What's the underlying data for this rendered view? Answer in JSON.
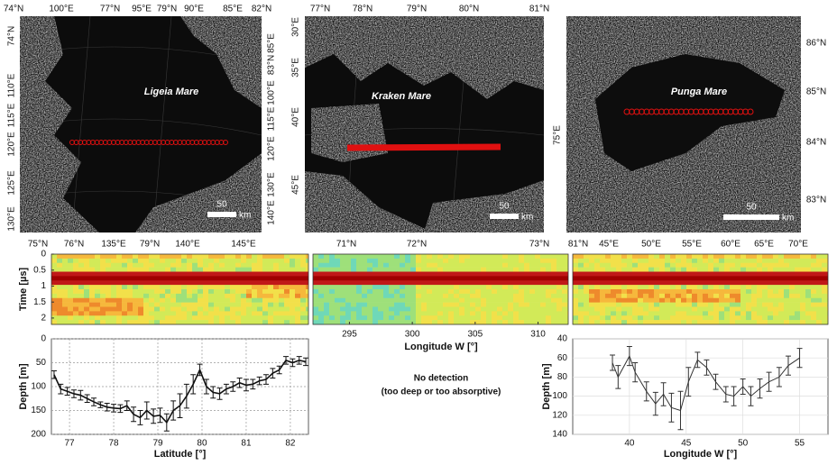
{
  "maps": [
    {
      "title": "Ligeia Mare",
      "scale": "50",
      "scale_unit": "km",
      "labels_top": [
        "74°N",
        "100°E",
        "77°N",
        "95°E",
        "79°N",
        "90°E",
        "85°E",
        "82°N"
      ],
      "labels_left": [
        "74°N",
        "110°E",
        "115°E",
        "120°E",
        "125°E",
        "130°E"
      ],
      "labels_right": [
        "85°E",
        "83°N",
        "100°E",
        "115°E",
        "120°E",
        "130°E",
        "140°E"
      ],
      "labels_bottom": [
        "75°N",
        "76°N",
        "135°E",
        "79°N",
        "140°E",
        "145°E"
      ]
    },
    {
      "title": "Kraken Mare",
      "scale": "50",
      "scale_unit": "km",
      "labels_top": [
        "77°N",
        "78°N",
        "79°N",
        "80°N",
        "81°N"
      ],
      "labels_left": [
        "30°E",
        "35°E",
        "40°E",
        "45°E"
      ],
      "labels_right": [],
      "labels_bottom": [
        "71°N",
        "72°N",
        "73°N"
      ]
    },
    {
      "title": "Punga Mare",
      "scale": "50",
      "scale_unit": "km",
      "labels_top": [],
      "labels_left": [
        "75°E"
      ],
      "labels_right": [
        "86°N",
        "85°N",
        "84°N",
        "83°N"
      ],
      "labels_bottom": [
        "81°N",
        "45°E",
        "50°E",
        "55°E",
        "60°E",
        "65°E",
        "70°E"
      ]
    }
  ],
  "no_detection": [
    "No detection",
    "(too deep or too absorptive)"
  ],
  "chart_data": [
    {
      "type": "radargram",
      "ylabel": "Time [µs]",
      "ylim": [
        0,
        2.2
      ],
      "yticks": [
        0,
        0.5,
        1,
        1.5,
        2
      ],
      "xlabel": "Longitude W [°]",
      "xlim": [
        292.1,
        312.4
      ],
      "xticks": [
        295,
        300,
        305,
        310
      ]
    },
    {
      "type": "errorbar",
      "xlabel": "Latitude [°]",
      "ylabel": "Depth [m]",
      "color": "#111111",
      "grid": true,
      "y_inverted": true,
      "xlim": [
        76.59,
        82.41
      ],
      "xticks": [
        77,
        78,
        79,
        80,
        81,
        82
      ],
      "ylim": [
        0,
        200
      ],
      "yticks": [
        0,
        50,
        100,
        150,
        200
      ],
      "x": [
        76.65,
        76.8,
        76.95,
        77.1,
        77.25,
        77.4,
        77.55,
        77.7,
        77.85,
        78.0,
        78.15,
        78.3,
        78.45,
        78.6,
        78.75,
        78.9,
        79.05,
        79.2,
        79.35,
        79.5,
        79.65,
        79.8,
        79.95,
        80.1,
        80.25,
        80.4,
        80.55,
        80.7,
        80.85,
        81.0,
        81.15,
        81.3,
        81.45,
        81.6,
        81.75,
        81.9,
        82.05,
        82.2,
        82.35
      ],
      "values": [
        75,
        105,
        110,
        115,
        118,
        125,
        132,
        138,
        143,
        145,
        146,
        140,
        158,
        165,
        150,
        162,
        160,
        175,
        150,
        140,
        120,
        95,
        65,
        100,
        112,
        115,
        105,
        100,
        92,
        97,
        95,
        88,
        85,
        72,
        65,
        45,
        50,
        45,
        48
      ],
      "errors": [
        8,
        10,
        8,
        8,
        10,
        8,
        8,
        6,
        8,
        8,
        8,
        10,
        15,
        15,
        18,
        15,
        15,
        18,
        20,
        25,
        25,
        20,
        12,
        15,
        12,
        12,
        10,
        10,
        10,
        12,
        10,
        8,
        10,
        10,
        8,
        8,
        8,
        8,
        8
      ]
    },
    {
      "type": "errorbar",
      "xlabel": "Longitude W [°]",
      "ylabel": "Depth [m]",
      "color": "#333333",
      "grid": true,
      "y_inverted": true,
      "xlim": [
        35,
        57.5
      ],
      "xticks": [
        40,
        45,
        50,
        55
      ],
      "ylim": [
        40,
        140
      ],
      "yticks": [
        40,
        60,
        80,
        100,
        120,
        140
      ],
      "x": [
        38.5,
        39,
        40,
        40.5,
        41.5,
        42.3,
        43,
        43.7,
        44.5,
        45.2,
        46,
        46.8,
        47.6,
        48.5,
        49.2,
        50,
        50.7,
        51.5,
        52.3,
        53.2,
        54,
        55
      ],
      "values": [
        65,
        80,
        58,
        75,
        95,
        108,
        98,
        112,
        115,
        85,
        62,
        70,
        85,
        98,
        100,
        90,
        100,
        92,
        85,
        80,
        68,
        60
      ],
      "errors": [
        8,
        12,
        10,
        10,
        10,
        12,
        12,
        15,
        20,
        15,
        8,
        8,
        8,
        8,
        10,
        8,
        10,
        10,
        10,
        10,
        10,
        10
      ]
    }
  ]
}
